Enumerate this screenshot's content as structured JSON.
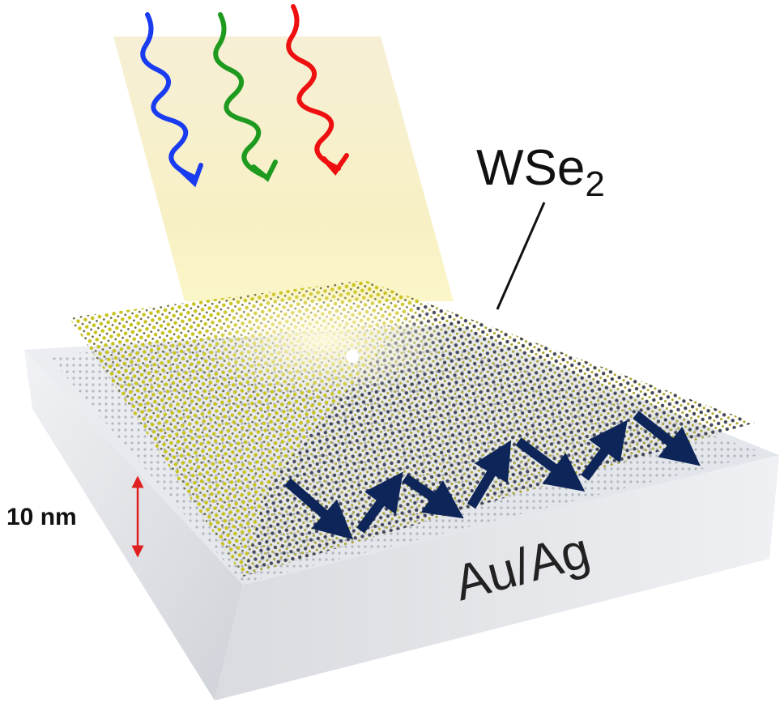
{
  "labels": {
    "material": "WSe",
    "material_subscript": "2",
    "thickness": "10 nm",
    "substrate": "Au/Ag"
  }
}
